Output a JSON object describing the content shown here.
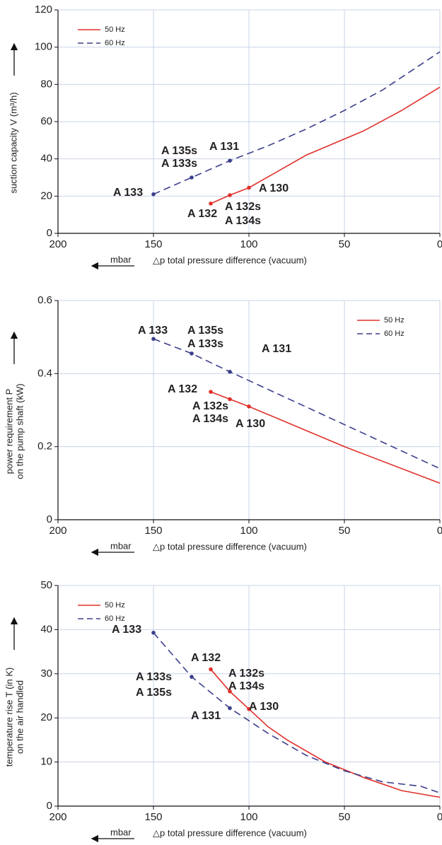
{
  "chart_data": [
    {
      "type": "line",
      "xlim": [
        200,
        0
      ],
      "xticks": [
        200,
        150,
        100,
        50,
        0
      ],
      "ylim": [
        0,
        120
      ],
      "yticks": [
        0,
        20,
        40,
        60,
        80,
        100,
        120
      ],
      "ylabel": [
        "suction capacity V (m³/h)"
      ],
      "xunit": "mbar",
      "xlabel": "△p  total pressure difference (vacuum)",
      "grid": true,
      "legend": "upper left",
      "series": [
        {
          "name": "50 Hz",
          "color": "#e0302a",
          "linestyle": "solid",
          "label_color": "#d0312d",
          "x": [
            120,
            110,
            100,
            70,
            40,
            20,
            0
          ],
          "values": [
            16,
            20.5,
            24.5,
            42,
            55,
            66,
            78.5
          ],
          "labels": [
            "A 132",
            "A 132s",
            "A 134s",
            "A 130"
          ]
        },
        {
          "name": "60 Hz",
          "color": "#3b3f8c",
          "linestyle": "dashed",
          "label_color": "#1b88c6",
          "x": [
            150,
            130,
            110,
            90,
            70,
            50,
            30,
            0
          ],
          "values": [
            21,
            30,
            39,
            47,
            56,
            66,
            77,
            97.5
          ],
          "labels": [
            "A 133",
            "A 135s",
            "A 133s",
            "A 131"
          ]
        }
      ]
    },
    {
      "type": "line",
      "xlim": [
        200,
        0
      ],
      "xticks": [
        200,
        150,
        100,
        50,
        0
      ],
      "ylim": [
        0,
        0.6
      ],
      "yticks": [
        0,
        0.2,
        0.4,
        0.6
      ],
      "ylabel": [
        "power requirement P",
        "on the pump shaft (kW)"
      ],
      "xunit": "mbar",
      "xlabel": "△p  total pressure difference (vacuum)",
      "grid": true,
      "legend": "upper right",
      "series": [
        {
          "name": "50 Hz",
          "color": "#e0302a",
          "linestyle": "solid",
          "label_color": "#d0312d",
          "x": [
            120,
            110,
            100,
            50,
            0
          ],
          "values": [
            0.35,
            0.33,
            0.31,
            0.2,
            0.1
          ],
          "labels": [
            "A 132",
            "A 132s",
            "A 134s",
            "A 130"
          ]
        },
        {
          "name": "60 Hz",
          "color": "#3b3f8c",
          "linestyle": "dashed",
          "label_color": "#1b88c6",
          "x": [
            150,
            130,
            110,
            0
          ],
          "values": [
            0.495,
            0.455,
            0.405,
            0.14
          ],
          "labels": [
            "A 133",
            "A 135s",
            "A 133s",
            "A 131"
          ]
        }
      ]
    },
    {
      "type": "line",
      "xlim": [
        200,
        0
      ],
      "xticks": [
        200,
        150,
        100,
        50,
        0
      ],
      "ylim": [
        0,
        50
      ],
      "yticks": [
        0,
        10,
        20,
        30,
        40,
        50
      ],
      "ylabel": [
        "temperature rise T (in K)",
        "on the air handled"
      ],
      "xunit": "mbar",
      "xlabel": "△p  total pressure difference (vacuum)",
      "grid": true,
      "legend": "upper left",
      "series": [
        {
          "name": "50 Hz",
          "color": "#e0302a",
          "linestyle": "solid",
          "label_color": "#d0312d",
          "x": [
            120,
            110,
            100,
            90,
            80,
            60,
            40,
            20,
            0
          ],
          "values": [
            31,
            26,
            22,
            18,
            15,
            10,
            6.5,
            3.5,
            2
          ],
          "labels": [
            "A 132",
            "A 132s",
            "A 134s",
            "A 130"
          ]
        },
        {
          "name": "60 Hz",
          "color": "#3b3f8c",
          "linestyle": "dashed",
          "label_color": "#1b88c6",
          "x": [
            150,
            130,
            110,
            90,
            70,
            50,
            30,
            10,
            0
          ],
          "values": [
            39.3,
            29.3,
            22.2,
            16.5,
            11.5,
            8,
            5.5,
            4.5,
            3
          ],
          "labels": [
            "A 133",
            "A 133s",
            "A 135s",
            "A 131"
          ]
        }
      ]
    }
  ]
}
